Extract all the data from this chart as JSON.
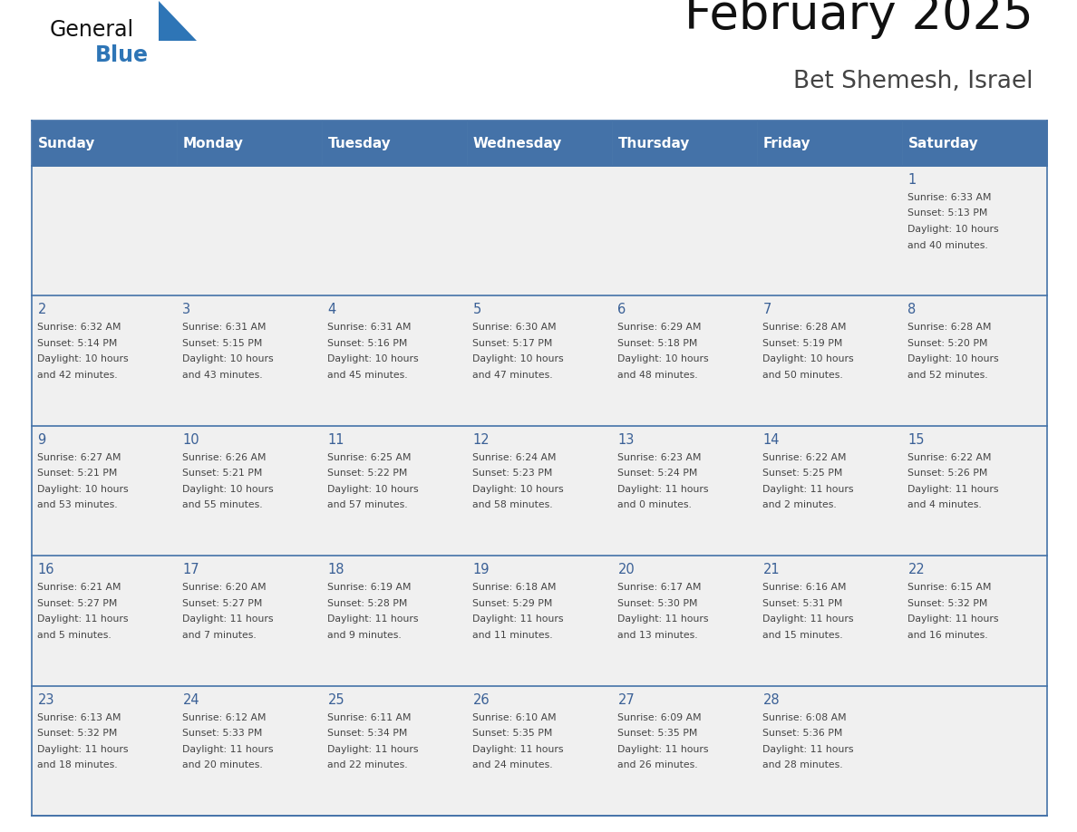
{
  "title": "February 2025",
  "subtitle": "Bet Shemesh, Israel",
  "days_of_week": [
    "Sunday",
    "Monday",
    "Tuesday",
    "Wednesday",
    "Thursday",
    "Friday",
    "Saturday"
  ],
  "header_bg": "#4472A8",
  "header_text": "#FFFFFF",
  "row_bg": "#F0F0F0",
  "cell_border_color": "#4472A8",
  "day_num_color": "#3A6096",
  "info_text_color": "#444444",
  "title_color": "#111111",
  "subtitle_color": "#444444",
  "logo_general_color": "#111111",
  "logo_blue_color": "#2E75B6",
  "logo_triangle_color": "#2E75B6",
  "calendar_data": [
    [
      {
        "day": null,
        "sunrise": null,
        "sunset": null,
        "daylight": null
      },
      {
        "day": null,
        "sunrise": null,
        "sunset": null,
        "daylight": null
      },
      {
        "day": null,
        "sunrise": null,
        "sunset": null,
        "daylight": null
      },
      {
        "day": null,
        "sunrise": null,
        "sunset": null,
        "daylight": null
      },
      {
        "day": null,
        "sunrise": null,
        "sunset": null,
        "daylight": null
      },
      {
        "day": null,
        "sunrise": null,
        "sunset": null,
        "daylight": null
      },
      {
        "day": 1,
        "sunrise": "6:33 AM",
        "sunset": "5:13 PM",
        "daylight": "10 hours\nand 40 minutes."
      }
    ],
    [
      {
        "day": 2,
        "sunrise": "6:32 AM",
        "sunset": "5:14 PM",
        "daylight": "10 hours\nand 42 minutes."
      },
      {
        "day": 3,
        "sunrise": "6:31 AM",
        "sunset": "5:15 PM",
        "daylight": "10 hours\nand 43 minutes."
      },
      {
        "day": 4,
        "sunrise": "6:31 AM",
        "sunset": "5:16 PM",
        "daylight": "10 hours\nand 45 minutes."
      },
      {
        "day": 5,
        "sunrise": "6:30 AM",
        "sunset": "5:17 PM",
        "daylight": "10 hours\nand 47 minutes."
      },
      {
        "day": 6,
        "sunrise": "6:29 AM",
        "sunset": "5:18 PM",
        "daylight": "10 hours\nand 48 minutes."
      },
      {
        "day": 7,
        "sunrise": "6:28 AM",
        "sunset": "5:19 PM",
        "daylight": "10 hours\nand 50 minutes."
      },
      {
        "day": 8,
        "sunrise": "6:28 AM",
        "sunset": "5:20 PM",
        "daylight": "10 hours\nand 52 minutes."
      }
    ],
    [
      {
        "day": 9,
        "sunrise": "6:27 AM",
        "sunset": "5:21 PM",
        "daylight": "10 hours\nand 53 minutes."
      },
      {
        "day": 10,
        "sunrise": "6:26 AM",
        "sunset": "5:21 PM",
        "daylight": "10 hours\nand 55 minutes."
      },
      {
        "day": 11,
        "sunrise": "6:25 AM",
        "sunset": "5:22 PM",
        "daylight": "10 hours\nand 57 minutes."
      },
      {
        "day": 12,
        "sunrise": "6:24 AM",
        "sunset": "5:23 PM",
        "daylight": "10 hours\nand 58 minutes."
      },
      {
        "day": 13,
        "sunrise": "6:23 AM",
        "sunset": "5:24 PM",
        "daylight": "11 hours\nand 0 minutes."
      },
      {
        "day": 14,
        "sunrise": "6:22 AM",
        "sunset": "5:25 PM",
        "daylight": "11 hours\nand 2 minutes."
      },
      {
        "day": 15,
        "sunrise": "6:22 AM",
        "sunset": "5:26 PM",
        "daylight": "11 hours\nand 4 minutes."
      }
    ],
    [
      {
        "day": 16,
        "sunrise": "6:21 AM",
        "sunset": "5:27 PM",
        "daylight": "11 hours\nand 5 minutes."
      },
      {
        "day": 17,
        "sunrise": "6:20 AM",
        "sunset": "5:27 PM",
        "daylight": "11 hours\nand 7 minutes."
      },
      {
        "day": 18,
        "sunrise": "6:19 AM",
        "sunset": "5:28 PM",
        "daylight": "11 hours\nand 9 minutes."
      },
      {
        "day": 19,
        "sunrise": "6:18 AM",
        "sunset": "5:29 PM",
        "daylight": "11 hours\nand 11 minutes."
      },
      {
        "day": 20,
        "sunrise": "6:17 AM",
        "sunset": "5:30 PM",
        "daylight": "11 hours\nand 13 minutes."
      },
      {
        "day": 21,
        "sunrise": "6:16 AM",
        "sunset": "5:31 PM",
        "daylight": "11 hours\nand 15 minutes."
      },
      {
        "day": 22,
        "sunrise": "6:15 AM",
        "sunset": "5:32 PM",
        "daylight": "11 hours\nand 16 minutes."
      }
    ],
    [
      {
        "day": 23,
        "sunrise": "6:13 AM",
        "sunset": "5:32 PM",
        "daylight": "11 hours\nand 18 minutes."
      },
      {
        "day": 24,
        "sunrise": "6:12 AM",
        "sunset": "5:33 PM",
        "daylight": "11 hours\nand 20 minutes."
      },
      {
        "day": 25,
        "sunrise": "6:11 AM",
        "sunset": "5:34 PM",
        "daylight": "11 hours\nand 22 minutes."
      },
      {
        "day": 26,
        "sunrise": "6:10 AM",
        "sunset": "5:35 PM",
        "daylight": "11 hours\nand 24 minutes."
      },
      {
        "day": 27,
        "sunrise": "6:09 AM",
        "sunset": "5:35 PM",
        "daylight": "11 hours\nand 26 minutes."
      },
      {
        "day": 28,
        "sunrise": "6:08 AM",
        "sunset": "5:36 PM",
        "daylight": "11 hours\nand 28 minutes."
      },
      {
        "day": null,
        "sunrise": null,
        "sunset": null,
        "daylight": null
      }
    ]
  ]
}
